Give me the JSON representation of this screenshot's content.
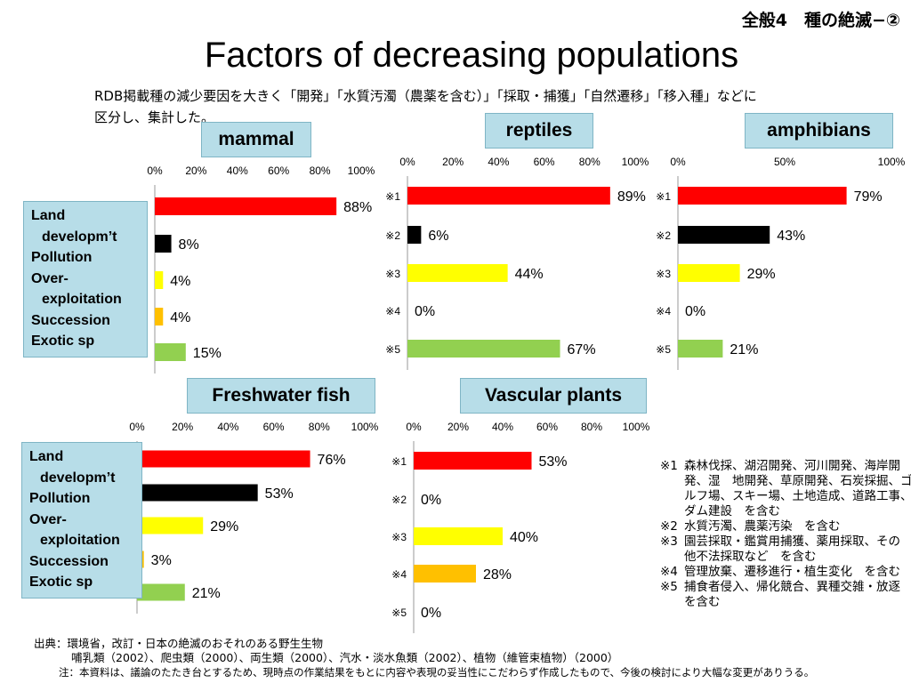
{
  "header": {
    "corner_label": "全般4　種の絶滅−②",
    "title": "Factors of decreasing populations",
    "intro_line1": "RDB掲載種の減少要因を大きく「開発」「水質汚濁（農薬を含む）」「採取・捕獲」「自然遷移」「移入種」などに",
    "intro_line2": "区分し、集計した。"
  },
  "legend": [
    "Land",
    "developm’t",
    "Pollution",
    "Over-",
    "exploitation",
    "Succession",
    "Exotic sp"
  ],
  "colors": [
    "#ff0000",
    "#000000",
    "#ffff00",
    "#ffc000",
    "#92d050"
  ],
  "chart_data": [
    {
      "id": "mammal",
      "type": "bar",
      "orientation": "horizontal",
      "title": "mammal",
      "categories": [
        "Land developm’t",
        "Pollution",
        "Over-exploitation",
        "Succession",
        "Exotic sp"
      ],
      "values": [
        88,
        8,
        4,
        4,
        15
      ],
      "labels": [
        "88%",
        "8%",
        "4%",
        "4%",
        "15%"
      ],
      "xlim": [
        0,
        100
      ],
      "ticks": [
        "0%",
        "20%",
        "40%",
        "60%",
        "80%",
        "100%"
      ]
    },
    {
      "id": "reptiles",
      "type": "bar",
      "orientation": "horizontal",
      "title": "reptiles",
      "categories": [
        "※1",
        "※2",
        "※3",
        "※4",
        "※5"
      ],
      "values": [
        89,
        6,
        44,
        0,
        67
      ],
      "labels": [
        "89%",
        "6%",
        "44%",
        "0%",
        "67%"
      ],
      "xlim": [
        0,
        100
      ],
      "ticks": [
        "0%",
        "20%",
        "40%",
        "60%",
        "80%",
        "100%"
      ]
    },
    {
      "id": "amphibians",
      "type": "bar",
      "orientation": "horizontal",
      "title": "amphibians",
      "categories": [
        "※1",
        "※2",
        "※3",
        "※4",
        "※5"
      ],
      "values": [
        79,
        43,
        29,
        0,
        21
      ],
      "labels": [
        "79%",
        "43%",
        "29%",
        "0%",
        "21%"
      ],
      "xlim": [
        0,
        100
      ],
      "ticks": [
        "0%",
        "50%",
        "100%"
      ]
    },
    {
      "id": "freshwater-fish",
      "type": "bar",
      "orientation": "horizontal",
      "title": "Freshwater fish",
      "categories": [
        "Land developm’t",
        "Pollution",
        "Over-exploitation",
        "Succession",
        "Exotic sp"
      ],
      "values": [
        76,
        53,
        29,
        3,
        21
      ],
      "labels": [
        "76%",
        "53%",
        "29%",
        "3%",
        "21%"
      ],
      "xlim": [
        0,
        100
      ],
      "ticks": [
        "0%",
        "20%",
        "40%",
        "60%",
        "80%",
        "100%"
      ]
    },
    {
      "id": "vascular-plants",
      "type": "bar",
      "orientation": "horizontal",
      "title": "Vascular plants",
      "categories": [
        "※1",
        "※2",
        "※3",
        "※4",
        "※5"
      ],
      "values": [
        53,
        0,
        40,
        28,
        0
      ],
      "labels": [
        "53%",
        "0%",
        "40%",
        "28%",
        "0%"
      ],
      "xlim": [
        0,
        100
      ],
      "ticks": [
        "0%",
        "20%",
        "40%",
        "60%",
        "80%",
        "100%"
      ]
    }
  ],
  "notes": [
    {
      "mark": "※1",
      "lines": [
        "森林伐採、湖沼開発、河川開発、海岸開",
        "発、湿　地開発、草原開発、石炭採掘、ゴ",
        "ルフ場、スキー場、土地造成、道路工事、",
        "ダム建設　を含む"
      ]
    },
    {
      "mark": "※2",
      "lines": [
        "水質汚濁、農薬汚染　を含む"
      ]
    },
    {
      "mark": "※3",
      "lines": [
        "園芸採取・鑑賞用捕獲、薬用採取、その",
        "他不法採取など　を含む"
      ]
    },
    {
      "mark": "※4",
      "lines": [
        "管理放棄、遷移進行・植生変化　を含む"
      ]
    },
    {
      "mark": "※5",
      "lines": [
        "捕食者侵入、帰化競合、異種交雑・放逐",
        "を含む"
      ]
    }
  ],
  "source": {
    "line1": "出典：環境省，改訂・日本の絶滅のおそれのある野生生物",
    "line2": "哺乳類（2002）、爬虫類（2000）、両生類（2000）、汽水・淡水魚類（2002）、植物（維管束植物）（2000）",
    "line3": "注：本資料は、議論のたたき台とするため、現時点の作業結果をもとに内容や表現の妥当性にこだわらず作成したもので、今後の検討により大幅な変更がありうる。"
  }
}
